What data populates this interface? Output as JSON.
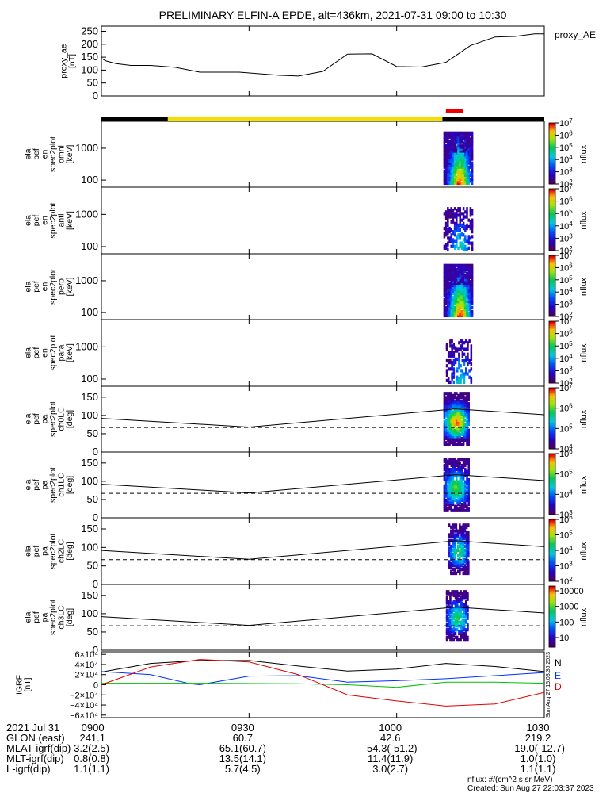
{
  "title": "PRELIMINARY ELFIN-A EPDE, alt=436km, 2021-07-31 09:00 to 10:30",
  "colors": {
    "state_black": "#000000",
    "state_yellow": "#f2e000",
    "state_red": "#ee0000",
    "bx": "#000000",
    "by": "#0030ff",
    "bz": "#00c000",
    "bd": "#e00000"
  },
  "chart_data": [
    {
      "type": "line",
      "panel": "proxy_ae",
      "ylabel": "proxy_ae [nT]",
      "legend": "proxy_AE",
      "ylim": [
        0,
        270
      ],
      "yticks": [
        0,
        50,
        100,
        150,
        200,
        250
      ],
      "x_min": [
        0,
        1,
        3,
        6,
        10,
        15,
        20,
        28,
        36,
        40,
        45,
        50,
        55,
        60,
        65,
        70,
        75,
        80,
        84,
        88,
        90,
        90
      ],
      "y": [
        145,
        135,
        125,
        118,
        118,
        111,
        92,
        92,
        80,
        77,
        95,
        162,
        163,
        114,
        112,
        130,
        195,
        228,
        230,
        240,
        240,
        240
      ]
    },
    {
      "type": "table",
      "panel": "science_state_bar",
      "segments": [
        {
          "from_min": 0,
          "to_min": 13.5,
          "state": "black"
        },
        {
          "from_min": 13.5,
          "to_min": 69.3,
          "state": "yellow"
        },
        {
          "from_min": 69.3,
          "to_min": 90,
          "state": "black"
        },
        {
          "from_min": 70,
          "to_min": 73.5,
          "state": "red"
        }
      ]
    },
    {
      "type": "heatmap",
      "panel": "omni",
      "ylabel": [
        "ela",
        "pef",
        "en",
        "spec2plot",
        "omni",
        "[keV]"
      ],
      "log_y": true,
      "ylim": [
        60,
        7000
      ],
      "yticks": [
        100,
        1000
      ],
      "colorbar": {
        "label": "nflux",
        "exp": [
          2,
          3,
          4,
          5,
          6,
          7
        ]
      },
      "x_range_min": [
        69.5,
        75.3
      ],
      "energy_range_keV": [
        80,
        3000
      ],
      "max_level": 0.95,
      "density": 0.95
    },
    {
      "type": "heatmap",
      "panel": "anti",
      "ylabel": [
        "ela",
        "pef",
        "en",
        "spec2plot",
        "anti",
        "[keV]"
      ],
      "log_y": true,
      "ylim": [
        60,
        7000
      ],
      "yticks": [
        100,
        1000
      ],
      "colorbar": {
        "label": "nflux",
        "exp": [
          2,
          3,
          4,
          5,
          6,
          7
        ]
      },
      "x_range_min": [
        69.5,
        75.3
      ],
      "energy_range_keV": [
        80,
        1500
      ],
      "max_level": 0.5,
      "density": 0.45
    },
    {
      "type": "heatmap",
      "panel": "perp",
      "ylabel": [
        "ela",
        "pef",
        "en",
        "spec2plot",
        "perp",
        "[keV]"
      ],
      "log_y": true,
      "ylim": [
        60,
        7000
      ],
      "yticks": [
        100,
        1000
      ],
      "colorbar": {
        "label": "nflux",
        "exp": [
          2,
          3,
          4,
          5,
          6,
          7
        ]
      },
      "x_range_min": [
        69.5,
        75.3
      ],
      "energy_range_keV": [
        80,
        3000
      ],
      "max_level": 0.95,
      "density": 0.95
    },
    {
      "type": "heatmap",
      "panel": "para",
      "ylabel": [
        "ela",
        "pef",
        "en",
        "spec2plot",
        "para",
        "[keV]"
      ],
      "log_y": true,
      "ylim": [
        60,
        7000
      ],
      "yticks": [
        100,
        1000
      ],
      "colorbar": {
        "label": "nflux",
        "exp": [
          2,
          3,
          4,
          5,
          6,
          7
        ]
      },
      "x_range_min": [
        70.0,
        75.3
      ],
      "energy_range_keV": [
        80,
        1500
      ],
      "max_level": 0.5,
      "density": 0.4
    },
    {
      "type": "heatmap",
      "panel": "ch0LC",
      "ylabel": [
        "ela",
        "pef",
        "pa",
        "spec2plot",
        "ch0LC",
        "[deg]"
      ],
      "ylim": [
        0,
        180
      ],
      "yticks": [
        0,
        50,
        100,
        150
      ],
      "colorbar": {
        "label": "nflux",
        "exp": [
          4,
          5,
          6,
          7
        ]
      },
      "x_range_min": [
        69.5,
        74.5
      ],
      "pa_range_deg": [
        20,
        160
      ],
      "max_level": 0.85,
      "density": 0.9,
      "loss_cone_x_min": [
        0,
        30,
        72,
        90
      ],
      "loss_cone_deg": [
        92,
        68,
        118,
        102
      ],
      "dashed_deg": 67
    },
    {
      "type": "heatmap",
      "panel": "ch1LC",
      "ylabel": [
        "ela",
        "pef",
        "pa",
        "spec2plot",
        "ch1LC",
        "[deg]"
      ],
      "ylim": [
        0,
        180
      ],
      "yticks": [
        0,
        50,
        100,
        150
      ],
      "colorbar": {
        "label": "nflux",
        "exp": [
          3,
          4,
          5,
          6
        ]
      },
      "x_range_min": [
        69.5,
        74.5
      ],
      "pa_range_deg": [
        20,
        160
      ],
      "max_level": 0.6,
      "density": 0.85,
      "loss_cone_x_min": [
        0,
        30,
        72,
        90
      ],
      "loss_cone_deg": [
        92,
        68,
        118,
        102
      ],
      "dashed_deg": 67
    },
    {
      "type": "heatmap",
      "panel": "ch2LC",
      "ylabel": [
        "ela",
        "pef",
        "pa",
        "spec2plot",
        "ch2LC",
        "[deg]"
      ],
      "ylim": [
        0,
        180
      ],
      "yticks": [
        0,
        50,
        100,
        150
      ],
      "colorbar": {
        "label": "nflux",
        "exp": [
          2,
          3,
          4,
          5,
          6
        ]
      },
      "x_range_min": [
        70.5,
        74.5
      ],
      "pa_range_deg": [
        30,
        160
      ],
      "max_level": 0.55,
      "density": 0.75,
      "loss_cone_x_min": [
        0,
        30,
        72,
        90
      ],
      "loss_cone_deg": [
        92,
        68,
        118,
        102
      ],
      "dashed_deg": 67
    },
    {
      "type": "heatmap",
      "panel": "ch3LC",
      "ylabel": [
        "ela",
        "pef",
        "pa",
        "spec2plot",
        "ch3LC",
        "[deg]"
      ],
      "ylim": [
        0,
        180
      ],
      "yticks": [
        0,
        50,
        100,
        150
      ],
      "colorbar": {
        "label": "nflux",
        "ticks": [
          "10",
          "100",
          "1000",
          "10000"
        ]
      },
      "x_range_min": [
        70.0,
        74.5
      ],
      "pa_range_deg": [
        30,
        160
      ],
      "max_level": 0.55,
      "density": 0.75,
      "loss_cone_x_min": [
        0,
        30,
        72,
        90
      ],
      "loss_cone_deg": [
        92,
        68,
        118,
        102
      ],
      "dashed_deg": 67
    },
    {
      "type": "line",
      "panel": "igrf",
      "ylabel": "IGRF [nT]",
      "ylim": [
        -65000,
        65000
      ],
      "yticks": [
        "6×10⁴",
        "4×10⁴",
        "2×10⁴",
        "0",
        "−2×10⁴",
        "−4×10⁴",
        "−6×10⁴"
      ],
      "ytick_values": [
        60000,
        40000,
        20000,
        0,
        -20000,
        -40000,
        -60000
      ],
      "series": [
        {
          "name": "N",
          "color_key": "bx",
          "x_min": [
            0,
            10,
            20,
            30,
            40,
            50,
            60,
            70,
            80,
            90
          ],
          "y": [
            25000,
            42000,
            48000,
            48000,
            37000,
            27000,
            31000,
            42000,
            36000,
            26000
          ]
        },
        {
          "name": "E",
          "color_key": "by",
          "x_min": [
            0,
            10,
            18,
            20,
            30,
            40,
            50,
            60,
            70,
            80,
            90
          ],
          "y": [
            26000,
            20000,
            2000,
            0,
            17000,
            18000,
            5000,
            8000,
            12000,
            18000,
            24000
          ]
        },
        {
          "name": "",
          "color_key": "bz",
          "x_min": [
            0,
            20,
            40,
            50,
            60,
            70,
            80,
            90
          ],
          "y": [
            3000,
            3000,
            2000,
            0,
            -5000,
            5000,
            5000,
            3000
          ]
        },
        {
          "name": "D",
          "color_key": "bd",
          "x_min": [
            0,
            10,
            20,
            30,
            40,
            50,
            60,
            70,
            80,
            90
          ],
          "y": [
            0,
            35000,
            50000,
            45000,
            20000,
            -20000,
            -32000,
            -42000,
            -38000,
            -15000
          ]
        }
      ],
      "side_note": "Sun Aug 27 15:03:36 2023"
    }
  ],
  "x_axis": {
    "tick_labels": [
      "0900",
      "0930",
      "1000",
      "1030"
    ],
    "tick_minutes": [
      0,
      30,
      60,
      90
    ]
  },
  "ephemeris": {
    "rows": [
      {
        "label": "2021 Jul 31",
        "values": [
          "0900",
          "0930",
          "1000",
          "1030"
        ]
      },
      {
        "label": "GLON (east)",
        "values": [
          "241.1",
          "60.7",
          "42.6",
          "219.2"
        ]
      },
      {
        "label": "MLAT-igrf(dip)",
        "values": [
          "3.2(2.5)",
          "65.1(60.7)",
          "-54.3(-51.2)",
          "-19.0(-12.7)"
        ]
      },
      {
        "label": "MLT-igrf(dip)",
        "values": [
          "0.8(0.8)",
          "13.5(14.1)",
          "11.4(11.9)",
          "1.0(1.0)"
        ]
      },
      {
        "label": "L-igrf(dip)",
        "values": [
          "1.1(1.1)",
          "5.7(4.5)",
          "3.0(2.7)",
          "1.1(1.1)"
        ]
      }
    ]
  },
  "footer": {
    "units": "nflux: #/(cm^2 s sr MeV)",
    "created": "Created: Sun Aug 27 22:03:37 2023"
  }
}
